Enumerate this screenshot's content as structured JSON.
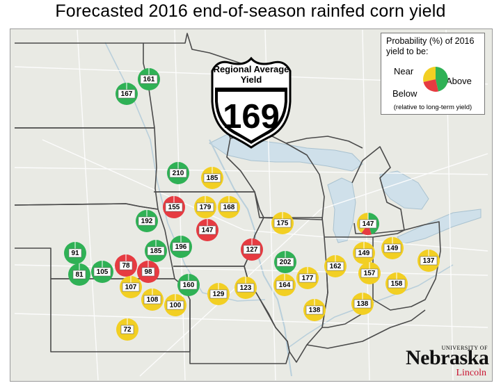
{
  "title": "Forecasted 2016 end-of-season rainfed corn yield",
  "shield": {
    "line1": "Regional Average",
    "line2": "Yield",
    "value": "169"
  },
  "legend": {
    "title_line1": "Probability (%) of 2016",
    "title_line2": "yield to be:",
    "near": "Near",
    "above": "Above",
    "below": "Below",
    "note": "(relative to long-term yield)"
  },
  "colors": {
    "above": "#2fb155",
    "near": "#f2cf23",
    "below": "#e63b41",
    "land": "#e9eae4",
    "border": "#4a4a4a"
  },
  "logo": {
    "university": "UNIVERSITY OF",
    "name": "Nebraska",
    "campus": "Lincoln"
  },
  "sites": [
    {
      "yield": "167",
      "category": "above"
    },
    {
      "yield": "161",
      "category": "above"
    },
    {
      "yield": "210",
      "category": "above"
    },
    {
      "yield": "185",
      "category": "near"
    },
    {
      "yield": "155",
      "category": "below"
    },
    {
      "yield": "179",
      "category": "near"
    },
    {
      "yield": "168",
      "category": "near"
    },
    {
      "yield": "192",
      "category": "above"
    },
    {
      "yield": "147",
      "category": "below"
    },
    {
      "yield": "175",
      "category": "near"
    },
    {
      "yield": "147",
      "category": "mixed",
      "pie": {
        "above": 45,
        "near": 40,
        "below": 15
      }
    },
    {
      "yield": "91",
      "category": "above"
    },
    {
      "yield": "185",
      "category": "above"
    },
    {
      "yield": "196",
      "category": "above"
    },
    {
      "yield": "127",
      "category": "below"
    },
    {
      "yield": "149",
      "category": "near"
    },
    {
      "yield": "149",
      "category": "near"
    },
    {
      "yield": "137",
      "category": "near"
    },
    {
      "yield": "81",
      "category": "above"
    },
    {
      "yield": "105",
      "category": "above"
    },
    {
      "yield": "78",
      "category": "below"
    },
    {
      "yield": "98",
      "category": "below"
    },
    {
      "yield": "202",
      "category": "above"
    },
    {
      "yield": "162",
      "category": "near"
    },
    {
      "yield": "157",
      "category": "near"
    },
    {
      "yield": "107",
      "category": "near"
    },
    {
      "yield": "160",
      "category": "above"
    },
    {
      "yield": "177",
      "category": "near"
    },
    {
      "yield": "158",
      "category": "near"
    },
    {
      "yield": "108",
      "category": "near"
    },
    {
      "yield": "129",
      "category": "near"
    },
    {
      "yield": "123",
      "category": "near"
    },
    {
      "yield": "164",
      "category": "near"
    },
    {
      "yield": "100",
      "category": "near"
    },
    {
      "yield": "138",
      "category": "near"
    },
    {
      "yield": "138",
      "category": "near"
    },
    {
      "yield": "72",
      "category": "near"
    }
  ]
}
